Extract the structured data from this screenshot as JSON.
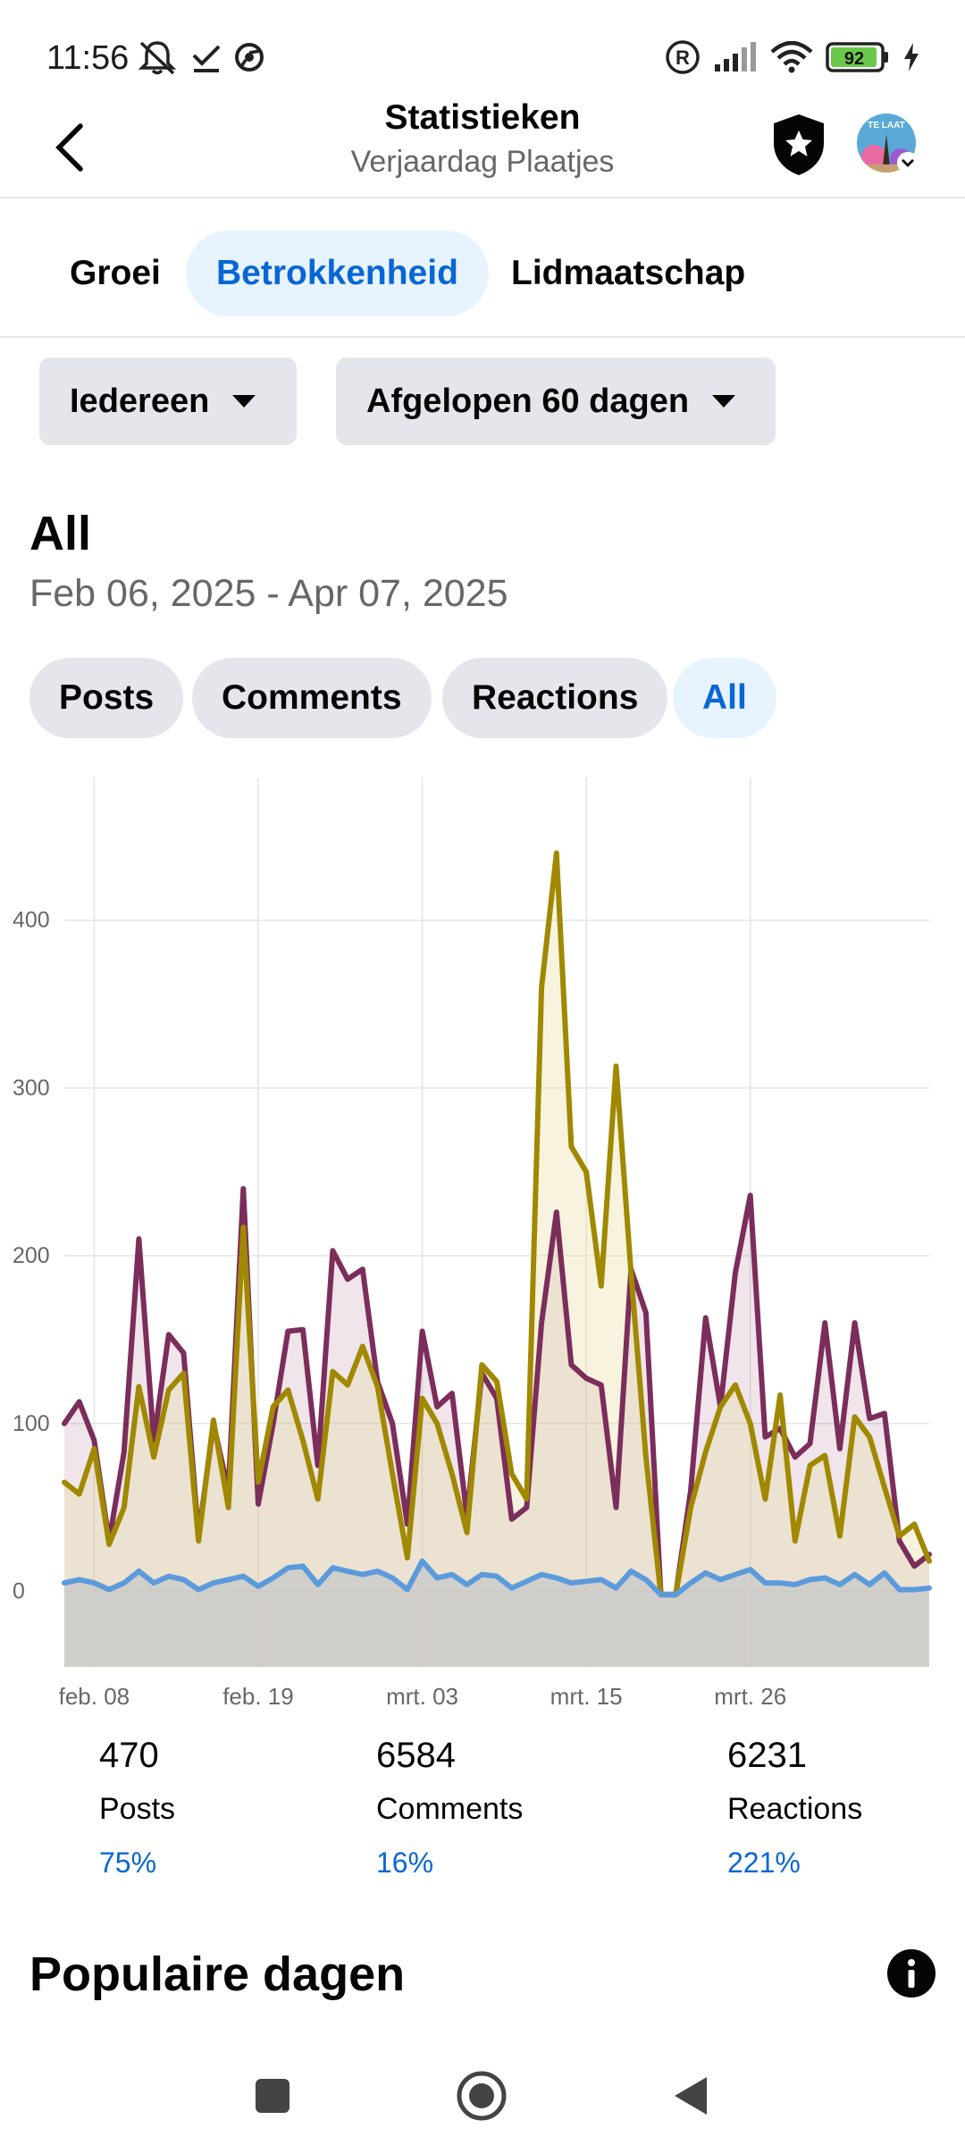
{
  "status_bar": {
    "time": "11:56",
    "battery": "92",
    "accent_battery": "#6ac94a"
  },
  "app_bar": {
    "title": "Statistieken",
    "subtitle": "Verjaardag Plaatjes",
    "avatar_text": "TE LAAT"
  },
  "tabs": [
    {
      "label": "Groei",
      "active": false
    },
    {
      "label": "Betrokkenheid",
      "active": true
    },
    {
      "label": "Lidmaatschap",
      "active": false
    }
  ],
  "filters": {
    "audience": "Iedereen",
    "period": "Afgelopen 60 dagen"
  },
  "section": {
    "heading": "All",
    "date_range": "Feb 06, 2025 - Apr 07, 2025"
  },
  "chips": [
    {
      "label": "Posts",
      "active": false
    },
    {
      "label": "Comments",
      "active": false
    },
    {
      "label": "Reactions",
      "active": false
    },
    {
      "label": "All",
      "active": true
    }
  ],
  "chart_data": {
    "type": "area",
    "x_tick_labels": [
      "feb. 08",
      "feb. 19",
      "mrt. 03",
      "mrt. 15",
      "mrt. 26"
    ],
    "x_tick_index": [
      2,
      13,
      24,
      35,
      46
    ],
    "y_ticks": [
      0,
      100,
      200,
      300,
      400
    ],
    "ylim": [
      -45,
      485
    ],
    "grid": true,
    "series": [
      {
        "color": "#7b2d5b",
        "values": [
          100,
          113,
          90,
          30,
          83,
          210,
          90,
          153,
          142,
          33,
          100,
          60,
          240,
          52,
          100,
          155,
          156,
          75,
          203,
          186,
          192,
          125,
          100,
          40,
          155,
          110,
          118,
          45,
          130,
          115,
          43,
          50,
          160,
          226,
          135,
          127,
          123,
          50,
          192,
          166,
          -2,
          -2,
          60,
          163,
          110,
          190,
          236,
          92,
          97,
          80,
          88,
          160,
          85,
          160,
          103,
          106,
          30,
          15,
          22
        ],
        "fill": "rgba(123,45,91,0.12)"
      },
      {
        "color": "#a08800",
        "values": [
          65,
          58,
          85,
          28,
          50,
          122,
          80,
          120,
          130,
          30,
          102,
          50,
          217,
          65,
          110,
          120,
          90,
          55,
          131,
          123,
          146,
          122,
          70,
          20,
          115,
          100,
          70,
          35,
          135,
          125,
          70,
          55,
          360,
          440,
          265,
          250,
          182,
          313,
          190,
          80,
          -2,
          -2,
          50,
          83,
          110,
          123,
          100,
          55,
          117,
          30,
          75,
          81,
          33,
          104,
          92,
          62,
          33,
          40,
          18
        ],
        "fill": "rgba(232,222,160,0.35)"
      },
      {
        "color": "#5b9bdc",
        "values": [
          5,
          7,
          5,
          1,
          5,
          12,
          5,
          9,
          7,
          1,
          5,
          7,
          9,
          3,
          8,
          14,
          15,
          4,
          14,
          12,
          10,
          12,
          8,
          1,
          18,
          8,
          10,
          4,
          10,
          9,
          2,
          6,
          10,
          8,
          5,
          6,
          7,
          2,
          12,
          7,
          -2,
          -2,
          5,
          11,
          7,
          10,
          13,
          5,
          5,
          4,
          7,
          8,
          4,
          10,
          4,
          11,
          1,
          1,
          2
        ],
        "fill": "rgba(200,200,200,0.75)"
      }
    ]
  },
  "stats": [
    {
      "value": "470",
      "label": "Posts",
      "pct": "75%"
    },
    {
      "value": "6584",
      "label": "Comments",
      "pct": "16%"
    },
    {
      "value": "6231",
      "label": "Reactions",
      "pct": "221%"
    }
  ],
  "popular": {
    "heading": "Populaire dagen"
  }
}
